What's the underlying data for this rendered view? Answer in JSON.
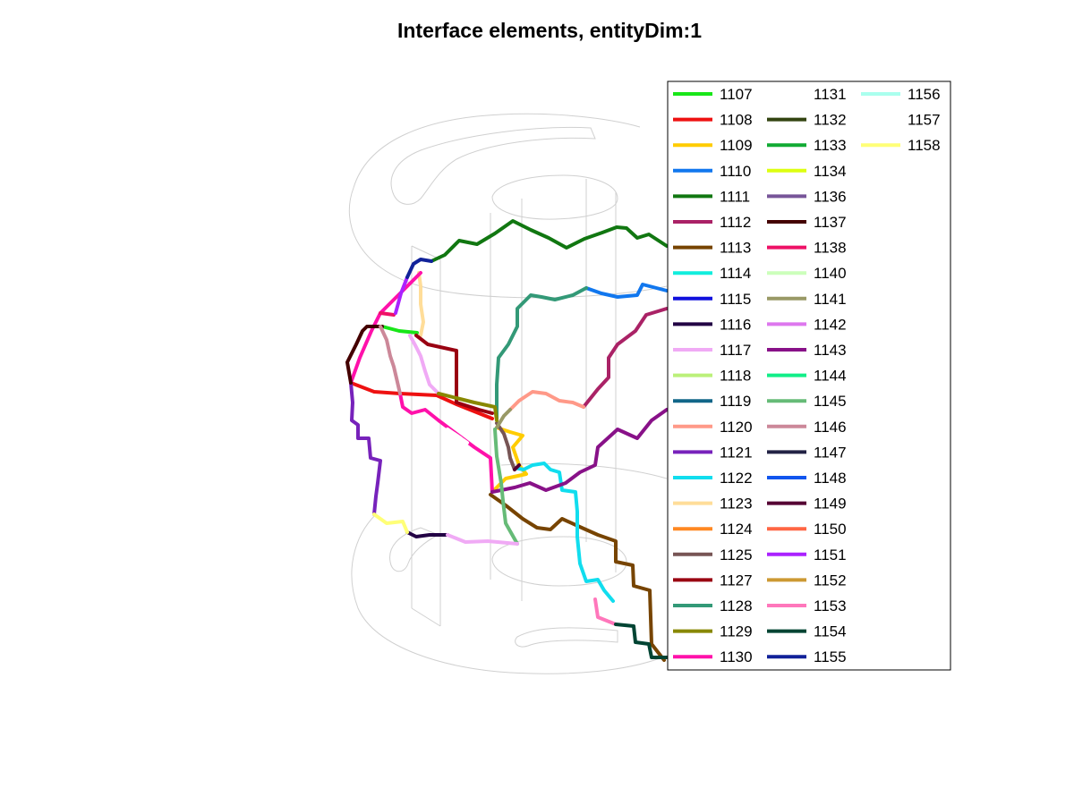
{
  "chart_data": {
    "type": "line",
    "title": "Interface elements, entityDim:1",
    "xlabel": "",
    "ylabel": "",
    "grid": false,
    "legend_placement": "right, partially covering the plot",
    "legend_columns": 3,
    "series": [
      {
        "name": "1107",
        "color": "#19e619"
      },
      {
        "name": "1108",
        "color": "#ee1111"
      },
      {
        "name": "1109",
        "color": "#ffcc00"
      },
      {
        "name": "1110",
        "color": "#1177ee"
      },
      {
        "name": "1111",
        "color": "#117711"
      },
      {
        "name": "1112",
        "color": "#aa2266"
      },
      {
        "name": "1113",
        "color": "#774400"
      },
      {
        "name": "1114",
        "color": "#11eedd"
      },
      {
        "name": "1115",
        "color": "#1111dd"
      },
      {
        "name": "1116",
        "color": "#220044"
      },
      {
        "name": "1117",
        "color": "#f0aaf5"
      },
      {
        "name": "1118",
        "color": "#bbf07a"
      },
      {
        "name": "1119",
        "color": "#116688"
      },
      {
        "name": "1120",
        "color": "#ff9988"
      },
      {
        "name": "1121",
        "color": "#7722bb"
      },
      {
        "name": "1122",
        "color": "#11ddee"
      },
      {
        "name": "1123",
        "color": "#ffdd99"
      },
      {
        "name": "1124",
        "color": "#ff8822"
      },
      {
        "name": "1125",
        "color": "#775555"
      },
      {
        "name": "1127",
        "color": "#990011"
      },
      {
        "name": "1128",
        "color": "#339977"
      },
      {
        "name": "1129",
        "color": "#888800"
      },
      {
        "name": "1130",
        "color": "#ff11aa"
      },
      {
        "name": "1131",
        "color": "#ffffff"
      },
      {
        "name": "1132",
        "color": "#334411"
      },
      {
        "name": "1133",
        "color": "#11aa33"
      },
      {
        "name": "1134",
        "color": "#ddff11"
      },
      {
        "name": "1136",
        "color": "#775599"
      },
      {
        "name": "1137",
        "color": "#440000"
      },
      {
        "name": "1138",
        "color": "#ee1166"
      },
      {
        "name": "1140",
        "color": "#ccffbb"
      },
      {
        "name": "1141",
        "color": "#999966"
      },
      {
        "name": "1142",
        "color": "#dd77ee"
      },
      {
        "name": "1143",
        "color": "#881188"
      },
      {
        "name": "1144",
        "color": "#11ee88"
      },
      {
        "name": "1145",
        "color": "#66bb77"
      },
      {
        "name": "1146",
        "color": "#cc8899"
      },
      {
        "name": "1147",
        "color": "#222244"
      },
      {
        "name": "1148",
        "color": "#1155ee"
      },
      {
        "name": "1149",
        "color": "#550033"
      },
      {
        "name": "1150",
        "color": "#ff6644"
      },
      {
        "name": "1151",
        "color": "#aa22ff"
      },
      {
        "name": "1152",
        "color": "#cc9933"
      },
      {
        "name": "1153",
        "color": "#ff77bb"
      },
      {
        "name": "1154",
        "color": "#004433"
      },
      {
        "name": "1155",
        "color": "#112299"
      },
      {
        "name": "1156",
        "color": "#aaffee"
      },
      {
        "name": "1157",
        "color": "#ffffff"
      },
      {
        "name": "1158",
        "color": "#ffff77"
      }
    ]
  }
}
